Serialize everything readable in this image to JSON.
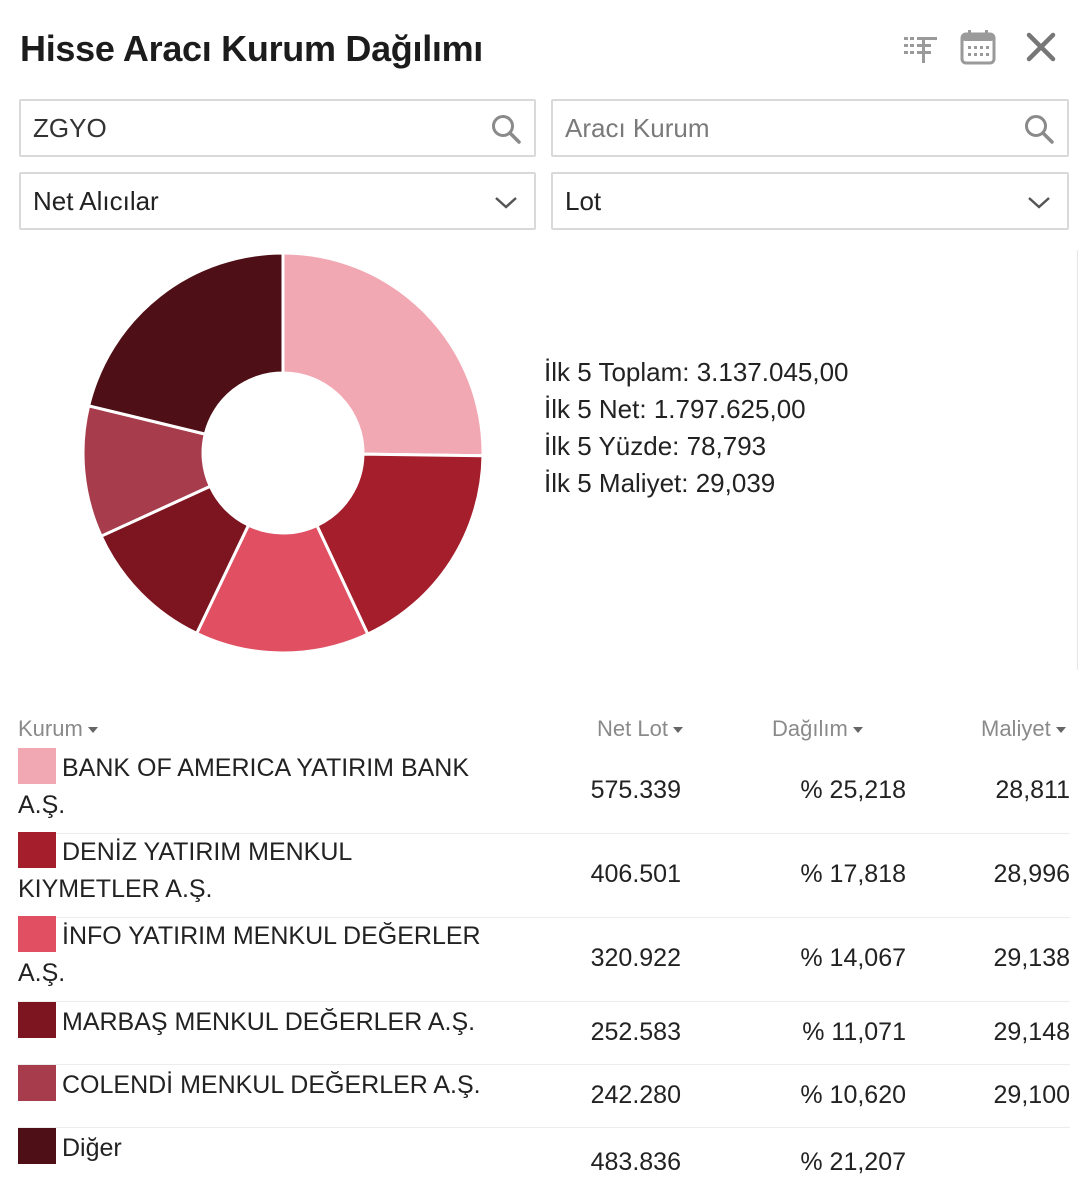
{
  "header": {
    "title": "Hisse Aracı Kurum Dağılımı"
  },
  "filters": {
    "symbol": {
      "value": "ZGYO",
      "placeholder": "ZGYO"
    },
    "broker": {
      "value": "",
      "placeholder": "Aracı Kurum"
    },
    "mode_select": {
      "selected": "Net Alıcılar"
    },
    "unit_select": {
      "selected": "Lot"
    }
  },
  "stats": {
    "toplam": "İlk 5 Toplam: 3.137.045,00",
    "net": "İlk 5 Net: 1.797.625,00",
    "yuzde": "İlk 5 Yüzde: 78,793",
    "maliyet": "İlk 5 Maliyet: 29,039"
  },
  "table": {
    "headers": {
      "kurum": "Kurum",
      "net_lot": "Net Lot",
      "dagilim": "Dağılım",
      "maliyet": "Maliyet"
    },
    "rows": [
      {
        "name": "BANK OF AMERICA YATIRIM BANK A.Ş.",
        "net_lot": "575.339",
        "dagilim": "% 25,218",
        "maliyet": "28,811",
        "color": "#f1a8b3"
      },
      {
        "name": "DENİZ YATIRIM MENKUL KIYMETLER A.Ş.",
        "net_lot": "406.501",
        "dagilim": "% 17,818",
        "maliyet": "28,996",
        "color": "#a41e2c"
      },
      {
        "name": "İNFO YATIRIM MENKUL DEĞERLER A.Ş.",
        "net_lot": "320.922",
        "dagilim": "% 14,067",
        "maliyet": "29,138",
        "color": "#e04f62"
      },
      {
        "name": "MARBAŞ MENKUL DEĞERLER A.Ş.",
        "net_lot": "252.583",
        "dagilim": "% 11,071",
        "maliyet": "29,148",
        "color": "#7c1520"
      },
      {
        "name": "COLENDİ MENKUL DEĞERLER A.Ş.",
        "net_lot": "242.280",
        "dagilim": "% 10,620",
        "maliyet": "29,100",
        "color": "#a73c4c"
      },
      {
        "name": "Diğer",
        "net_lot": "483.836",
        "dagilim": "% 21,207",
        "maliyet": "",
        "color": "#4e1016"
      }
    ]
  },
  "chart_data": {
    "type": "pie",
    "donut": true,
    "categories": [
      "BANK OF AMERICA YATIRIM BANK A.Ş.",
      "DENİZ YATIRIM MENKUL KIYMETLER A.Ş.",
      "İNFO YATIRIM MENKUL DEĞERLER A.Ş.",
      "MARBAŞ MENKUL DEĞERLER A.Ş.",
      "COLENDİ MENKUL DEĞERLER A.Ş.",
      "Diğer"
    ],
    "values": [
      25.218,
      17.818,
      14.067,
      11.071,
      10.62,
      21.207
    ],
    "colors": [
      "#f1a8b3",
      "#a41e2c",
      "#e04f62",
      "#7c1520",
      "#a73c4c",
      "#4e1016"
    ]
  }
}
